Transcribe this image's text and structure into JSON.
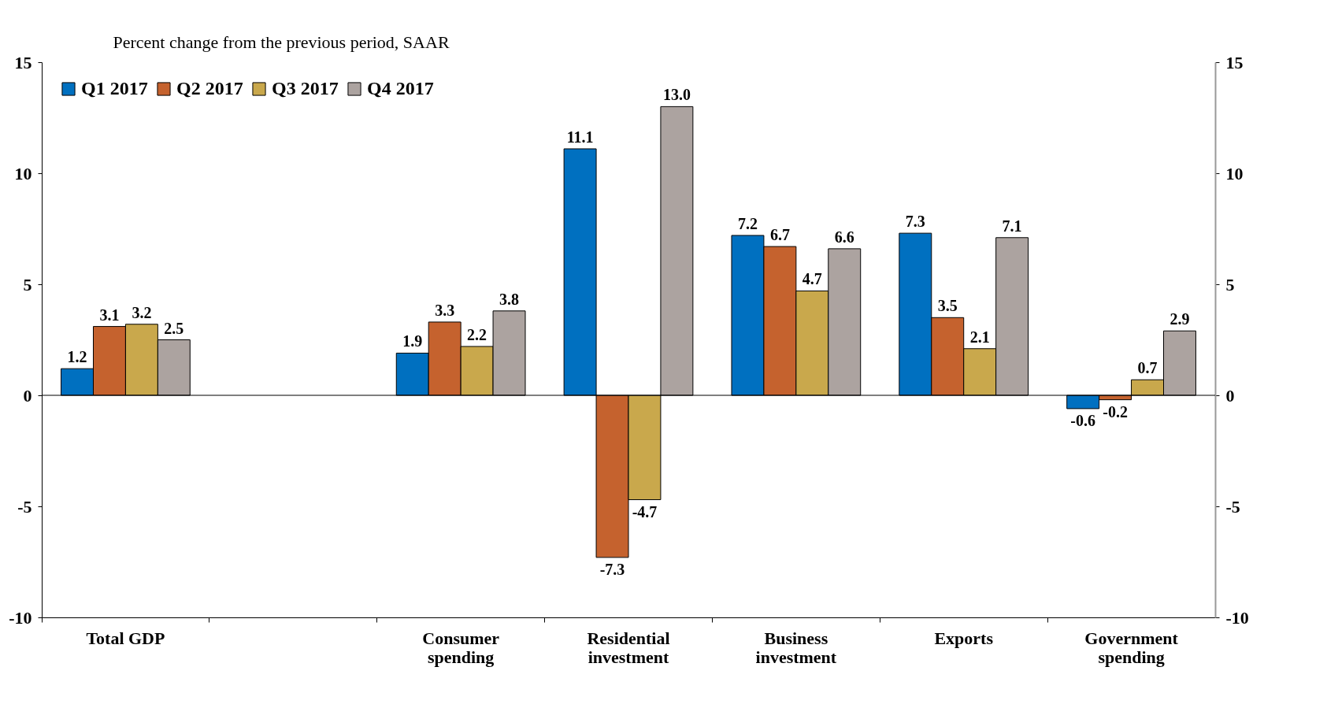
{
  "chart_data": {
    "type": "bar",
    "ylabel": "Percent change from the previous period, SAAR",
    "categories": [
      "Total GDP",
      null,
      "Consumer spending",
      "Residential investment",
      "Business investment",
      "Exports",
      "Government spending"
    ],
    "series": [
      {
        "name": "Q1 2017",
        "color": "#0070c0",
        "values": [
          1.2,
          null,
          1.9,
          11.1,
          7.2,
          7.3,
          -0.6
        ],
        "value_labels": [
          "1.2",
          null,
          "1.9",
          "11.1",
          "7.2",
          "7.3",
          "-0.6"
        ]
      },
      {
        "name": "Q2 2017",
        "color": "#c5622e",
        "values": [
          3.1,
          null,
          3.3,
          -7.3,
          6.7,
          3.5,
          -0.2
        ],
        "value_labels": [
          "3.1",
          null,
          "3.3",
          "-7.3",
          "6.7",
          "3.5",
          "-0.2"
        ]
      },
      {
        "name": "Q3 2017",
        "color": "#c9a84c",
        "values": [
          3.2,
          null,
          2.2,
          -4.7,
          4.7,
          2.1,
          0.7
        ],
        "value_labels": [
          "3.2",
          null,
          "2.2",
          "-4.7",
          "4.7",
          "2.1",
          "0.7"
        ]
      },
      {
        "name": "Q4 2017",
        "color": "#aca3a0",
        "values": [
          2.5,
          null,
          3.8,
          13,
          6.6,
          7.1,
          2.9
        ],
        "value_labels": [
          "2.5",
          null,
          "3.8",
          "13.0",
          "6.6",
          "7.1",
          "2.9"
        ]
      }
    ],
    "ylim": [
      -10,
      15
    ],
    "yticks": [
      -10,
      -5,
      0,
      5,
      10,
      15
    ],
    "y2lim": [
      -10,
      15
    ],
    "y2ticks": [
      -10,
      -5,
      0,
      5,
      10,
      15
    ],
    "ref_lines": [
      {
        "axis": "y",
        "value": 0,
        "color": "#000000"
      }
    ],
    "legend": "top left",
    "grid": false
  }
}
